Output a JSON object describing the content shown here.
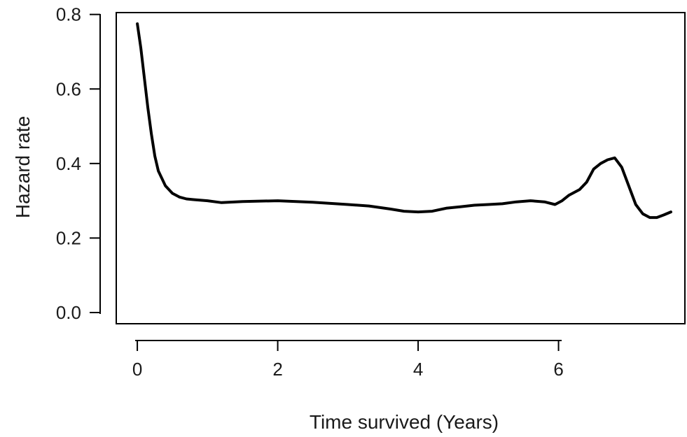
{
  "chart_data": {
    "type": "line",
    "title": "",
    "xlabel": "Time survived (Years)",
    "ylabel": "Hazard rate",
    "xlim": [
      -0.3,
      7.8
    ],
    "ylim": [
      -0.03,
      0.805
    ],
    "xticks": [
      0,
      2,
      4,
      6
    ],
    "yticks": [
      0.0,
      0.2,
      0.4,
      0.6,
      0.8
    ],
    "xtick_labels": [
      "0",
      "2",
      "4",
      "6"
    ],
    "ytick_labels": [
      "0.0",
      "0.2",
      "0.4",
      "0.6",
      "0.8"
    ],
    "grid": false,
    "legend": "none",
    "line_color": "#000000",
    "series": [
      {
        "x": [
          0.0,
          0.05,
          0.1,
          0.15,
          0.2,
          0.25,
          0.3,
          0.35,
          0.4,
          0.5,
          0.6,
          0.7,
          0.8,
          1.0,
          1.2,
          1.5,
          2.0,
          2.5,
          3.0,
          3.3,
          3.6,
          3.8,
          4.0,
          4.2,
          4.4,
          4.6,
          4.8,
          5.0,
          5.2,
          5.4,
          5.6,
          5.8,
          5.95,
          6.05,
          6.15,
          6.3,
          6.4,
          6.5,
          6.6,
          6.7,
          6.8,
          6.9,
          7.0,
          7.1,
          7.2,
          7.3,
          7.4,
          7.5,
          7.6
        ],
        "y": [
          0.775,
          0.71,
          0.63,
          0.55,
          0.48,
          0.42,
          0.38,
          0.36,
          0.34,
          0.32,
          0.31,
          0.305,
          0.303,
          0.3,
          0.295,
          0.298,
          0.3,
          0.296,
          0.29,
          0.286,
          0.278,
          0.272,
          0.27,
          0.272,
          0.28,
          0.284,
          0.288,
          0.29,
          0.292,
          0.297,
          0.3,
          0.297,
          0.29,
          0.3,
          0.315,
          0.33,
          0.35,
          0.385,
          0.4,
          0.41,
          0.415,
          0.39,
          0.34,
          0.29,
          0.265,
          0.255,
          0.255,
          0.262,
          0.27
        ]
      }
    ]
  }
}
